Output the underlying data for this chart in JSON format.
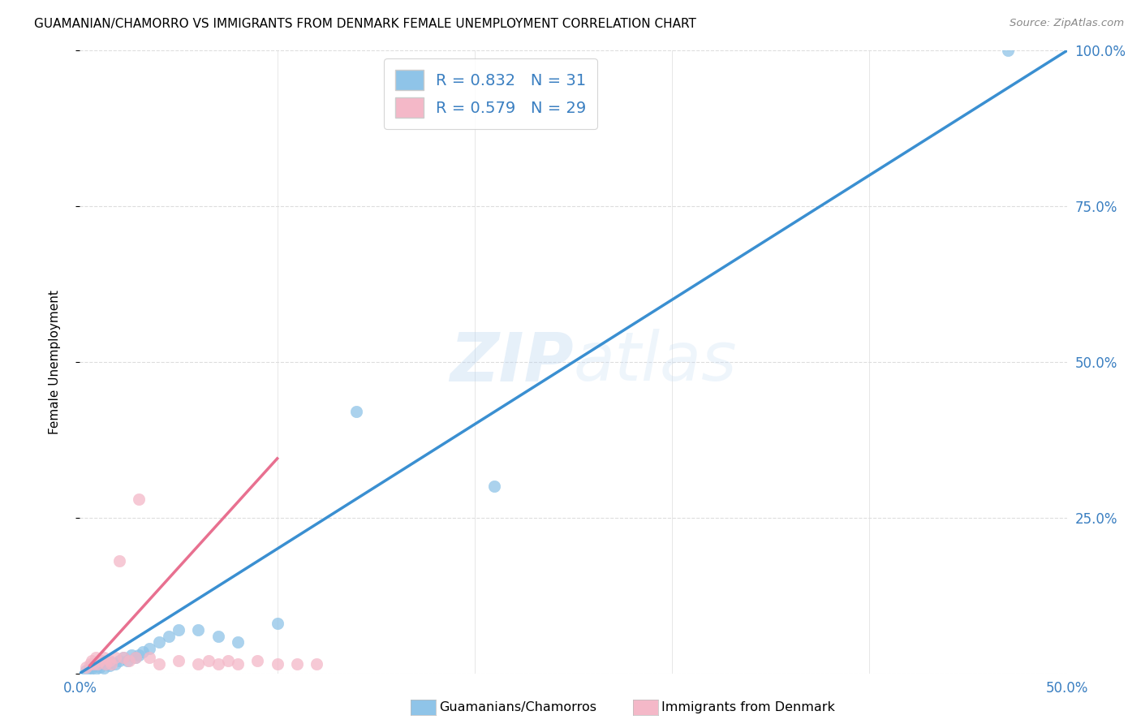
{
  "title": "GUAMANIAN/CHAMORRO VS IMMIGRANTS FROM DENMARK FEMALE UNEMPLOYMENT CORRELATION CHART",
  "source": "Source: ZipAtlas.com",
  "xlabel_blue": "Guamanians/Chamorros",
  "xlabel_pink": "Immigrants from Denmark",
  "ylabel": "Female Unemployment",
  "x_min": 0.0,
  "x_max": 0.5,
  "y_min": 0.0,
  "y_max": 1.0,
  "x_ticks": [
    0.0,
    0.1,
    0.2,
    0.3,
    0.4,
    0.5
  ],
  "x_tick_labels": [
    "0.0%",
    "",
    "",
    "",
    "",
    "50.0%"
  ],
  "y_ticks": [
    0.0,
    0.25,
    0.5,
    0.75,
    1.0
  ],
  "y_tick_labels_right": [
    "",
    "25.0%",
    "50.0%",
    "75.0%",
    "100.0%"
  ],
  "blue_color": "#8fc4e8",
  "pink_color": "#f4b8c8",
  "blue_line_color": "#3a8fd1",
  "pink_line_color": "#e87090",
  "diagonal_color": "#cccccc",
  "R_blue": 0.832,
  "N_blue": 31,
  "R_pink": 0.579,
  "N_pink": 29,
  "watermark": "ZIPatlas",
  "blue_scatter_x": [
    0.003,
    0.005,
    0.006,
    0.007,
    0.008,
    0.009,
    0.01,
    0.011,
    0.012,
    0.013,
    0.015,
    0.016,
    0.018,
    0.02,
    0.022,
    0.024,
    0.026,
    0.028,
    0.03,
    0.032,
    0.035,
    0.04,
    0.045,
    0.05,
    0.06,
    0.07,
    0.08,
    0.1,
    0.14,
    0.21,
    0.47
  ],
  "blue_scatter_y": [
    0.005,
    0.01,
    0.008,
    0.012,
    0.007,
    0.015,
    0.01,
    0.02,
    0.008,
    0.015,
    0.012,
    0.018,
    0.015,
    0.02,
    0.025,
    0.02,
    0.03,
    0.025,
    0.03,
    0.035,
    0.04,
    0.05,
    0.06,
    0.07,
    0.07,
    0.06,
    0.05,
    0.08,
    0.42,
    0.3,
    1.0
  ],
  "pink_scatter_x": [
    0.003,
    0.005,
    0.006,
    0.007,
    0.008,
    0.009,
    0.01,
    0.012,
    0.013,
    0.015,
    0.016,
    0.018,
    0.02,
    0.022,
    0.025,
    0.028,
    0.03,
    0.035,
    0.04,
    0.05,
    0.06,
    0.065,
    0.07,
    0.075,
    0.08,
    0.09,
    0.1,
    0.11,
    0.12
  ],
  "pink_scatter_y": [
    0.01,
    0.015,
    0.02,
    0.015,
    0.025,
    0.015,
    0.02,
    0.025,
    0.015,
    0.02,
    0.015,
    0.025,
    0.18,
    0.025,
    0.02,
    0.025,
    0.28,
    0.025,
    0.015,
    0.02,
    0.015,
    0.02,
    0.015,
    0.02,
    0.015,
    0.02,
    0.015,
    0.015,
    0.015
  ],
  "blue_line_x": [
    0.0,
    0.5
  ],
  "blue_line_y": [
    0.0,
    1.0
  ],
  "pink_line_x_start": 0.005,
  "pink_line_x_end": 0.1,
  "pink_line_slope": 3.5,
  "pink_line_intercept": -0.005
}
